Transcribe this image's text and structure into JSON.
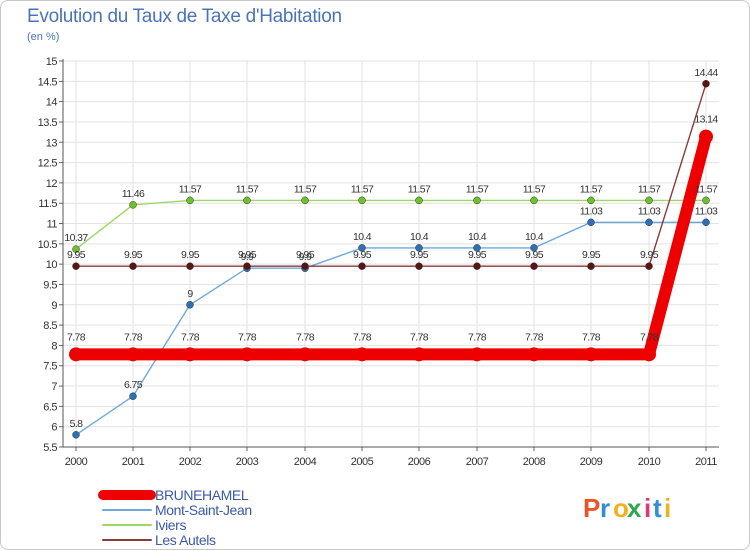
{
  "chart_data": {
    "type": "line",
    "title": "Evolution du Taux de Taxe d'Habitation",
    "ylabel": "(en %)",
    "xlabel": "",
    "x": [
      "2000",
      "2001",
      "2002",
      "2003",
      "2004",
      "2005",
      "2006",
      "2007",
      "2008",
      "2009",
      "2010",
      "2011"
    ],
    "ylim": [
      5.5,
      15
    ],
    "yticks": [
      "5.5",
      "6",
      "6.5",
      "7",
      "7.5",
      "8",
      "8.5",
      "9",
      "9.5",
      "10",
      "10.5",
      "11",
      "11.5",
      "12",
      "12.5",
      "13",
      "13.5",
      "14",
      "14.5",
      "15"
    ],
    "grid": true,
    "series": [
      {
        "name": "BRUNEHAMEL",
        "color": "#ee0000",
        "point_color": "#ee0000",
        "values": [
          7.78,
          7.78,
          7.78,
          7.78,
          7.78,
          7.78,
          7.78,
          7.78,
          7.78,
          7.78,
          7.78,
          13.14
        ],
        "labels": [
          "7.78",
          "7.78",
          "7.78",
          "7.78",
          "7.78",
          "7.78",
          "7.78",
          "7.78",
          "7.78",
          "7.78",
          "7.78",
          "13.14"
        ]
      },
      {
        "name": "Mont-Saint-Jean",
        "color": "#6fa8dc",
        "point_color": "#2f6fb5",
        "values": [
          5.8,
          6.75,
          9,
          9.9,
          9.9,
          10.4,
          10.4,
          10.4,
          10.4,
          11.03,
          11.03,
          11.03
        ],
        "labels": [
          "5.8",
          "6.75",
          "9",
          "9.9",
          "9.9",
          "10.4",
          "10.4",
          "10.4",
          "10.4",
          "11.03",
          "11.03",
          "11.03"
        ]
      },
      {
        "name": "Iviers",
        "color": "#9fd66a",
        "point_color": "#6cc12c",
        "values": [
          10.37,
          11.46,
          11.57,
          11.57,
          11.57,
          11.57,
          11.57,
          11.57,
          11.57,
          11.57,
          11.57,
          11.57
        ],
        "labels": [
          "10.37",
          "11.46",
          "11.57",
          "11.57",
          "11.57",
          "11.57",
          "11.57",
          "11.57",
          "11.57",
          "11.57",
          "11.57",
          "11.57"
        ]
      },
      {
        "name": "Les Autels",
        "color": "#8b3a3a",
        "point_color": "#5a1414",
        "values": [
          9.95,
          9.95,
          9.95,
          9.95,
          9.95,
          9.95,
          9.95,
          9.95,
          9.95,
          9.95,
          9.95,
          14.44
        ],
        "labels": [
          "9.95",
          "9.95",
          "9.95",
          "9.95",
          "9.95",
          "9.95",
          "9.95",
          "9.95",
          "9.95",
          "9.95",
          "9.95",
          "14.44"
        ]
      }
    ]
  },
  "brand": {
    "text": "Proxiti",
    "letters": [
      "P",
      "r",
      "o",
      "x",
      "i",
      "t",
      "i"
    ],
    "colors": [
      "#e8542b",
      "#2e8fd6",
      "#f2b01e",
      "#2ea84a",
      "#d93a7a",
      "#2e8fd6",
      "#f2b01e"
    ]
  }
}
